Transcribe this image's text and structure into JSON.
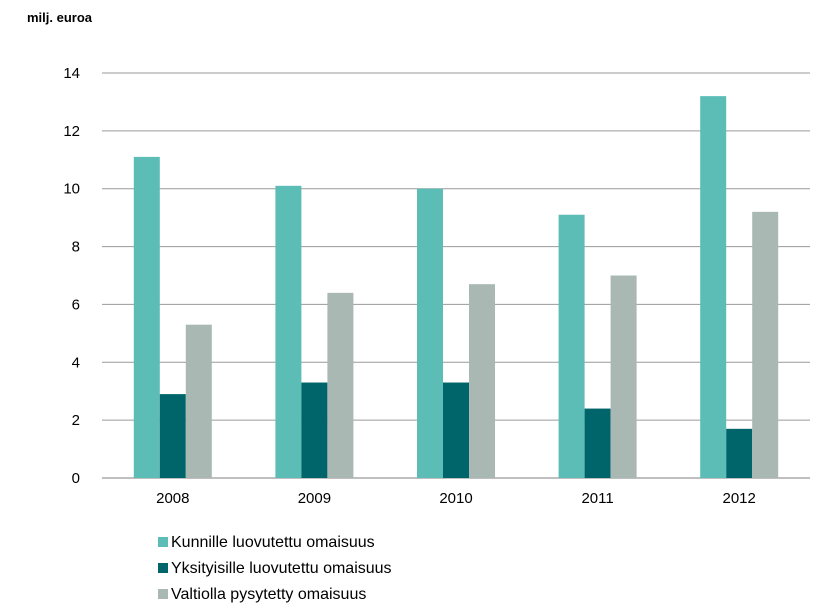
{
  "chart_data": {
    "type": "bar",
    "ylabel": "milj. euroa",
    "categories": [
      "2008",
      "2009",
      "2010",
      "2011",
      "2012"
    ],
    "ylim": [
      0,
      14
    ],
    "yticks": [
      0,
      2,
      4,
      6,
      8,
      10,
      12,
      14
    ],
    "grid": true,
    "legend_position": "bottom-left",
    "series": [
      {
        "name": "Kunnille luovutettu omaisuus",
        "color": "#5bbdb5",
        "values": [
          11.1,
          10.1,
          10.0,
          9.1,
          13.2
        ]
      },
      {
        "name": "Yksityisille luovutettu omaisuus",
        "color": "#00656a",
        "values": [
          2.9,
          3.3,
          3.3,
          2.4,
          1.7
        ]
      },
      {
        "name": "Valtiolla pysytetty omaisuus",
        "color": "#a9b8b2",
        "values": [
          5.3,
          6.4,
          6.7,
          7.0,
          9.2
        ]
      }
    ]
  }
}
